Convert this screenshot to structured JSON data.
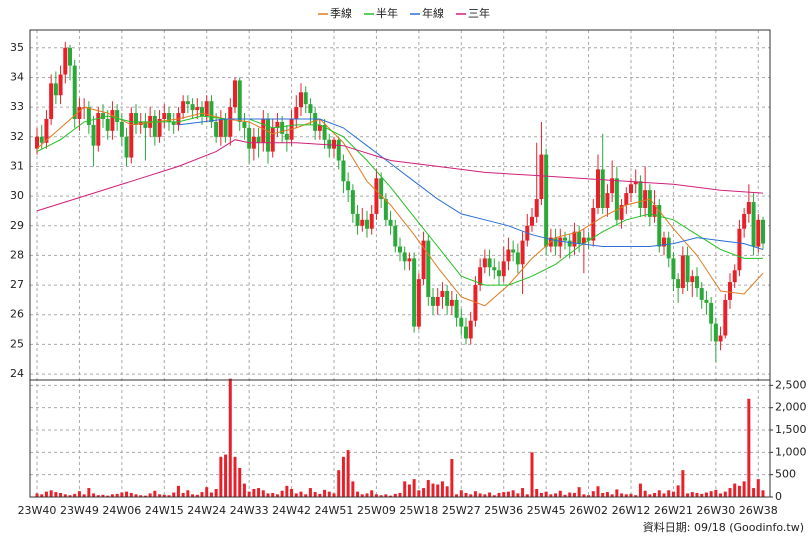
{
  "chart_data": {
    "type": "candlestick",
    "footnote": "資料日期: 09/18 (Goodinfo.tw)",
    "categories": [
      "23W40",
      null,
      null,
      null,
      null,
      null,
      null,
      null,
      null,
      "23W49",
      null,
      null,
      null,
      null,
      null,
      null,
      null,
      null,
      "24W06",
      null,
      null,
      null,
      null,
      null,
      null,
      null,
      null,
      "24W15",
      null,
      null,
      null,
      null,
      null,
      null,
      null,
      null,
      "24W24",
      null,
      null,
      null,
      null,
      null,
      null,
      null,
      null,
      "24W33",
      null,
      null,
      null,
      null,
      null,
      null,
      null,
      null,
      "24W42",
      null,
      null,
      null,
      null,
      null,
      null,
      null,
      null,
      "24W51",
      null,
      null,
      null,
      null,
      null,
      null,
      null,
      null,
      "25W09",
      null,
      null,
      null,
      null,
      null,
      null,
      null,
      null,
      "25W18",
      null,
      null,
      null,
      null,
      null,
      null,
      null,
      null,
      "25W27",
      null,
      null,
      null,
      null,
      null,
      null,
      null,
      null,
      "25W36",
      null,
      null,
      null,
      null,
      null,
      null,
      null,
      null,
      "25W45",
      null,
      null,
      null,
      null,
      null,
      null,
      null,
      null,
      "26W02",
      null,
      null,
      null,
      null,
      null,
      null,
      null,
      null,
      "26W12",
      null,
      null,
      null,
      null,
      null,
      null,
      null,
      null,
      "26W21",
      null,
      null,
      null,
      null,
      null,
      null,
      null,
      null,
      "26W30",
      null,
      null,
      null,
      null,
      null,
      null,
      null,
      null,
      "26W38",
      null
    ],
    "open": [
      31.6,
      32.0,
      31.8,
      32.6,
      33.8,
      33.4,
      34.1,
      35.0,
      34.4,
      32.6,
      33.0,
      33.0,
      32.4,
      31.7,
      32.8,
      32.6,
      32.2,
      32.9,
      32.5,
      32.0,
      31.3,
      32.8,
      32.4,
      32.5,
      32.3,
      32.7,
      32.0,
      32.6,
      32.8,
      32.5,
      32.4,
      32.8,
      33.2,
      33.1,
      32.9,
      33.0,
      32.7,
      33.2,
      32.5,
      32.0,
      32.6,
      32.0,
      33.0,
      33.9,
      32.5,
      32.3,
      31.6,
      32.0,
      31.8,
      32.6,
      31.5,
      32.3,
      32.5,
      32.1,
      31.9,
      32.6,
      33.0,
      33.5,
      33.1,
      32.8,
      32.2,
      32.4,
      31.9,
      31.6,
      31.9,
      31.2,
      30.5,
      30.2,
      29.4,
      29.0,
      29.2,
      28.9,
      29.4,
      30.6,
      29.9,
      29.2,
      29.0,
      28.3,
      28.1,
      27.8,
      27.9,
      25.6,
      27.2,
      28.5,
      26.6,
      26.3,
      26.6,
      26.8,
      26.3,
      26.5,
      25.9,
      25.6,
      25.2,
      25.8,
      27.0,
      27.6,
      27.9,
      27.6,
      27.5,
      27.3,
      27.8,
      28.2,
      28.1,
      27.7,
      28.5,
      29.0,
      29.3,
      29.9,
      31.4,
      28.3,
      28.6,
      28.3,
      28.6,
      28.5,
      28.3,
      28.8,
      28.4,
      28.6,
      28.5,
      29.6,
      30.9,
      29.6,
      30.1,
      30.6,
      29.2,
      29.7,
      30.1,
      30.4,
      30.5,
      29.6,
      30.2,
      29.3,
      29.7,
      28.3,
      28.6,
      27.9,
      27.2,
      26.9,
      28.0,
      27.1,
      27.3,
      26.9,
      26.5,
      26.4,
      25.7,
      25.1,
      25.3,
      26.5,
      27.1,
      27.5,
      28.9,
      29.4,
      29.8,
      28.3,
      29.2
    ],
    "high": [
      32.3,
      32.4,
      32.9,
      34.1,
      34.2,
      34.4,
      35.2,
      35.1,
      34.6,
      33.3,
      33.3,
      33.2,
      32.7,
      33.0,
      33.1,
      32.9,
      33.2,
      33.1,
      32.8,
      32.3,
      33.0,
      33.1,
      32.8,
      32.8,
      33.0,
      32.9,
      32.9,
      33.1,
      33.0,
      32.8,
      33.0,
      33.4,
      33.4,
      33.3,
      33.3,
      33.2,
      33.4,
      33.4,
      32.8,
      32.9,
      32.8,
      33.3,
      34.0,
      34.0,
      32.8,
      32.5,
      32.3,
      32.3,
      32.9,
      32.8,
      32.6,
      32.8,
      32.7,
      32.4,
      32.9,
      33.4,
      33.8,
      33.7,
      33.3,
      33.0,
      32.6,
      32.6,
      32.1,
      32.0,
      32.0,
      31.4,
      30.8,
      30.4,
      29.7,
      29.6,
      29.5,
      29.7,
      30.9,
      30.8,
      30.1,
      29.5,
      29.2,
      28.6,
      28.3,
      28.1,
      28.1,
      27.4,
      28.8,
      28.7,
      26.9,
      26.9,
      27.1,
      27.0,
      26.8,
      26.7,
      26.2,
      25.9,
      26.1,
      27.3,
      27.9,
      28.2,
      28.2,
      27.9,
      27.8,
      28.3,
      28.6,
      28.5,
      28.4,
      28.8,
      29.4,
      29.6,
      31.8,
      32.5,
      31.6,
      28.9,
      28.9,
      28.9,
      28.8,
      28.7,
      29.1,
      29.0,
      28.9,
      28.8,
      29.9,
      31.4,
      32.1,
      30.4,
      31.2,
      31.0,
      29.9,
      30.3,
      30.6,
      30.9,
      30.7,
      31.0,
      30.4,
      30.2,
      29.9,
      28.8,
      28.8,
      28.1,
      27.4,
      28.3,
      28.3,
      27.5,
      27.6,
      27.1,
      26.8,
      26.6,
      25.9,
      25.6,
      26.7,
      27.4,
      27.7,
      29.2,
      29.6,
      30.4,
      30.1,
      29.4,
      29.3
    ],
    "low": [
      31.4,
      31.6,
      31.6,
      32.4,
      33.1,
      33.1,
      33.8,
      33.9,
      32.3,
      32.2,
      32.6,
      32.1,
      31.0,
      31.5,
      32.3,
      31.9,
      31.9,
      32.2,
      31.7,
      31.0,
      31.1,
      32.1,
      32.1,
      31.2,
      32.0,
      31.7,
      31.8,
      32.3,
      32.2,
      32.1,
      32.2,
      32.6,
      32.8,
      32.6,
      32.6,
      32.4,
      32.5,
      32.3,
      31.8,
      31.7,
      31.8,
      31.7,
      32.8,
      32.2,
      31.9,
      31.1,
      31.2,
      31.3,
      31.5,
      31.1,
      31.3,
      32.0,
      31.8,
      31.5,
      31.7,
      32.3,
      32.7,
      32.8,
      32.4,
      31.9,
      31.9,
      31.6,
      31.3,
      31.3,
      30.9,
      30.1,
      29.8,
      29.1,
      28.7,
      28.8,
      28.6,
      28.7,
      29.2,
      29.6,
      29.0,
      28.7,
      28.1,
      27.8,
      27.5,
      27.5,
      25.4,
      25.5,
      27.0,
      26.3,
      26.0,
      26.0,
      26.2,
      26.0,
      26.0,
      25.6,
      25.3,
      25.0,
      25.0,
      25.6,
      26.8,
      27.4,
      27.3,
      27.2,
      27.0,
      27.1,
      27.5,
      27.8,
      27.4,
      26.7,
      28.3,
      28.8,
      29.1,
      29.7,
      28.0,
      28.1,
      28.0,
      27.9,
      28.2,
      27.9,
      28.0,
      28.1,
      27.4,
      28.2,
      28.3,
      29.4,
      29.4,
      29.3,
      29.8,
      29.0,
      28.9,
      29.4,
      29.8,
      30.1,
      29.3,
      29.3,
      29.0,
      29.1,
      28.1,
      28.0,
      27.6,
      26.8,
      26.4,
      26.7,
      26.8,
      26.6,
      26.6,
      26.2,
      26.0,
      25.1,
      24.4,
      24.8,
      25.2,
      26.2,
      26.9,
      27.3,
      28.6,
      29.1,
      28.0,
      28.1,
      28.2
    ],
    "close": [
      32.0,
      31.8,
      32.6,
      33.8,
      33.4,
      34.1,
      35.0,
      34.4,
      32.6,
      33.0,
      33.0,
      32.4,
      31.7,
      32.8,
      32.6,
      32.2,
      32.9,
      32.5,
      32.0,
      31.3,
      32.8,
      32.4,
      32.5,
      32.3,
      32.7,
      32.0,
      32.6,
      32.8,
      32.5,
      32.4,
      32.8,
      33.2,
      33.1,
      32.9,
      33.0,
      32.7,
      33.2,
      32.5,
      32.0,
      32.6,
      32.0,
      33.0,
      33.9,
      32.5,
      32.3,
      31.6,
      32.0,
      31.8,
      32.6,
      31.5,
      32.3,
      32.5,
      32.1,
      31.9,
      32.6,
      33.0,
      33.5,
      33.1,
      32.8,
      32.2,
      32.4,
      31.9,
      31.6,
      31.9,
      31.2,
      30.5,
      30.2,
      29.4,
      29.0,
      29.2,
      28.9,
      29.4,
      30.6,
      29.9,
      29.2,
      29.0,
      28.3,
      28.1,
      27.8,
      27.9,
      25.6,
      27.2,
      28.5,
      26.6,
      26.3,
      26.6,
      26.8,
      26.3,
      26.5,
      25.9,
      25.6,
      25.2,
      25.8,
      27.0,
      27.6,
      27.9,
      27.6,
      27.5,
      27.3,
      27.8,
      28.2,
      28.1,
      27.7,
      28.5,
      29.0,
      29.3,
      29.9,
      31.4,
      28.3,
      28.6,
      28.3,
      28.6,
      28.5,
      28.3,
      28.8,
      28.4,
      28.6,
      28.5,
      29.6,
      30.9,
      29.6,
      30.1,
      30.6,
      29.2,
      29.7,
      30.1,
      30.4,
      30.5,
      29.6,
      30.2,
      29.3,
      29.7,
      28.3,
      28.6,
      27.9,
      27.2,
      26.9,
      28.0,
      27.1,
      27.3,
      26.9,
      26.5,
      26.4,
      25.7,
      25.1,
      25.3,
      26.5,
      27.1,
      27.5,
      28.9,
      29.4,
      29.8,
      28.3,
      29.2,
      28.4
    ],
    "up_color": "#e8202a",
    "down_color": "#2aa838",
    "series": [
      {
        "name": "季線",
        "color": "#e07b20",
        "x": [
          0,
          5,
          10,
          15,
          20,
          25,
          30,
          35,
          40,
          45,
          50,
          55,
          60,
          65,
          70,
          75,
          80,
          85,
          90,
          95,
          100,
          105,
          110,
          115,
          120,
          125,
          130,
          135,
          140,
          145,
          150,
          154
        ],
        "values": [
          31.6,
          32.3,
          33.0,
          32.8,
          32.4,
          32.5,
          32.6,
          32.8,
          32.6,
          32.5,
          32.1,
          32.3,
          32.6,
          31.8,
          30.5,
          29.7,
          28.7,
          27.6,
          26.6,
          26.3,
          27.0,
          27.9,
          28.6,
          28.8,
          29.3,
          29.7,
          29.9,
          28.9,
          28.0,
          26.8,
          26.7,
          27.4
        ]
      },
      {
        "name": "半年",
        "color": "#22c022",
        "x": [
          0,
          5,
          10,
          15,
          20,
          25,
          30,
          35,
          40,
          45,
          50,
          55,
          60,
          65,
          70,
          75,
          80,
          85,
          90,
          95,
          100,
          105,
          110,
          115,
          120,
          125,
          130,
          135,
          140,
          145,
          150,
          154
        ],
        "values": [
          31.5,
          31.9,
          32.5,
          32.7,
          32.5,
          32.5,
          32.5,
          32.7,
          32.6,
          32.6,
          32.3,
          32.4,
          32.4,
          32.0,
          31.2,
          30.3,
          29.3,
          28.3,
          27.3,
          27.0,
          27.0,
          27.3,
          27.7,
          28.3,
          28.8,
          29.2,
          29.4,
          29.2,
          28.7,
          28.2,
          27.9,
          27.9
        ]
      },
      {
        "name": "年線",
        "color": "#2a6fd6",
        "x": [
          30,
          40,
          50,
          60,
          65,
          70,
          75,
          80,
          85,
          90,
          95,
          100,
          105,
          110,
          115,
          120,
          125,
          130,
          135,
          140,
          145,
          150,
          154
        ],
        "values": [
          32.4,
          32.6,
          32.6,
          32.6,
          32.3,
          31.7,
          31.1,
          30.5,
          29.9,
          29.4,
          29.2,
          29.0,
          28.7,
          28.5,
          28.4,
          28.3,
          28.3,
          28.3,
          28.4,
          28.6,
          28.5,
          28.4,
          28.2
        ]
      },
      {
        "name": "三年",
        "color": "#d0207a",
        "x": [
          0,
          10,
          20,
          30,
          38,
          42,
          45,
          55,
          65,
          75,
          85,
          95,
          105,
          115,
          125,
          135,
          145,
          154
        ],
        "values": [
          29.5,
          30.0,
          30.5,
          31.0,
          31.5,
          31.9,
          31.8,
          31.8,
          31.7,
          31.2,
          31.0,
          30.8,
          30.7,
          30.6,
          30.5,
          30.4,
          30.2,
          30.1
        ]
      }
    ],
    "ylim": [
      23.8,
      35.6
    ],
    "yticks": [
      24,
      25,
      26,
      27,
      28,
      29,
      30,
      31,
      32,
      33,
      34,
      35
    ],
    "grid": true,
    "volume": {
      "type": "bar",
      "color": "#e8202a",
      "values": [
        80,
        60,
        120,
        150,
        110,
        90,
        60,
        40,
        70,
        130,
        60,
        200,
        80,
        40,
        50,
        30,
        60,
        70,
        100,
        120,
        90,
        60,
        40,
        30,
        80,
        140,
        60,
        50,
        40,
        100,
        250,
        90,
        150,
        60,
        50,
        110,
        220,
        100,
        180,
        900,
        950,
        2650,
        900,
        650,
        300,
        120,
        180,
        200,
        150,
        80,
        90,
        60,
        140,
        250,
        180,
        80,
        120,
        60,
        200,
        110,
        70,
        160,
        120,
        80,
        600,
        900,
        1050,
        350,
        120,
        60,
        80,
        150,
        60,
        40,
        60,
        30,
        70,
        90,
        350,
        280,
        400,
        150,
        200,
        380,
        300,
        280,
        350,
        240,
        850,
        60,
        150,
        90,
        60,
        130,
        80,
        60,
        100,
        40,
        90,
        110,
        120,
        150,
        80,
        200,
        60,
        1000,
        180,
        90,
        120,
        60,
        80,
        140,
        50,
        100,
        90,
        220,
        60,
        40,
        130,
        240,
        90,
        110,
        60,
        170,
        80,
        60,
        70,
        40,
        300,
        140,
        60,
        90,
        150,
        80,
        150,
        120,
        260,
        600,
        80,
        110,
        90,
        70,
        100,
        130,
        160,
        80,
        120,
        200,
        300,
        250,
        350,
        2200,
        200,
        400,
        150
      ],
      "ylim": [
        0,
        2620
      ],
      "yticks": [
        0,
        500,
        {
          "value": 1000,
          "label": "1,000"
        },
        {
          "value": 1500,
          "label": "1,500"
        },
        {
          "value": 2000,
          "label": "2,000"
        },
        {
          "value": 2500,
          "label": "2,500"
        }
      ]
    }
  }
}
